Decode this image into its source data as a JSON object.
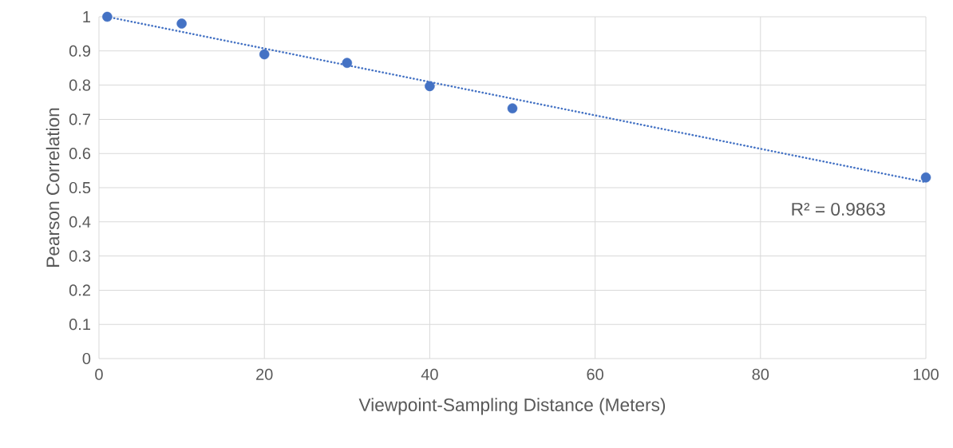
{
  "chart_data": {
    "type": "scatter",
    "xlabel": "Viewpoint-Sampling Distance (Meters)",
    "ylabel": "Pearson Correlation",
    "series": [
      {
        "color": "#4472c4",
        "marker": "circle",
        "x": [
          1,
          10,
          20,
          30,
          40,
          50,
          100
        ],
        "values": [
          1.0,
          0.98,
          0.89,
          0.865,
          0.797,
          0.732,
          0.53
        ]
      },
      {
        "type": "line",
        "color": "#4472c4",
        "marker": "none",
        "line_style": "dotted",
        "x": [
          1,
          100
        ],
        "values": [
          1.0,
          0.516
        ]
      }
    ],
    "xlim": [
      0,
      100
    ],
    "ylim": [
      0,
      1
    ],
    "xticks": [
      0,
      20,
      40,
      60,
      80,
      100
    ],
    "yticks": [
      0,
      0.1,
      0.2,
      0.3,
      0.4,
      0.5,
      0.6,
      0.7,
      0.8,
      0.9,
      1
    ],
    "grid": true,
    "annotations": [
      "R² = 0.9863"
    ]
  }
}
